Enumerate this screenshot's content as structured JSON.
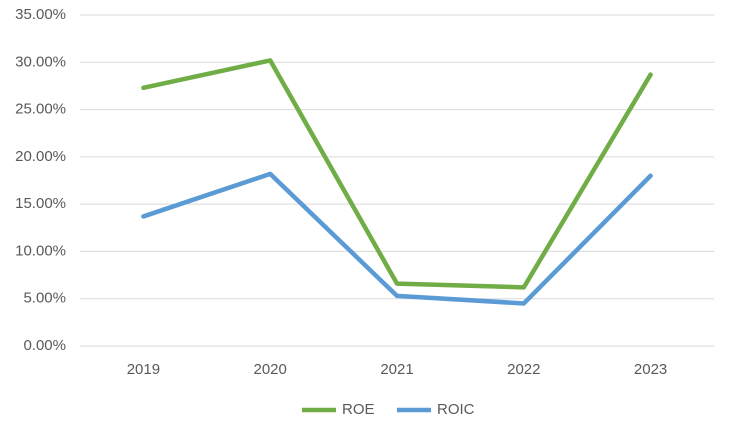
{
  "chart_data": {
    "type": "line",
    "categories": [
      "2019",
      "2020",
      "2021",
      "2022",
      "2023"
    ],
    "series": [
      {
        "name": "ROE",
        "color": "#70ad47",
        "values": [
          27.3,
          30.2,
          6.6,
          6.2,
          28.7
        ]
      },
      {
        "name": "ROIC",
        "color": "#5b9bd5",
        "values": [
          13.7,
          18.2,
          5.3,
          4.5,
          18.0
        ]
      }
    ],
    "ylim": [
      0,
      35
    ],
    "yticks": [
      {
        "value": 0,
        "label": "0.00%"
      },
      {
        "value": 5,
        "label": "5.00%"
      },
      {
        "value": 10,
        "label": "10.00%"
      },
      {
        "value": 15,
        "label": "15.00%"
      },
      {
        "value": 20,
        "label": "20.00%"
      },
      {
        "value": 25,
        "label": "25.00%"
      },
      {
        "value": 30,
        "label": "30.00%"
      },
      {
        "value": 35,
        "label": "35.00%"
      }
    ],
    "grid": true,
    "legend": "bottom"
  }
}
